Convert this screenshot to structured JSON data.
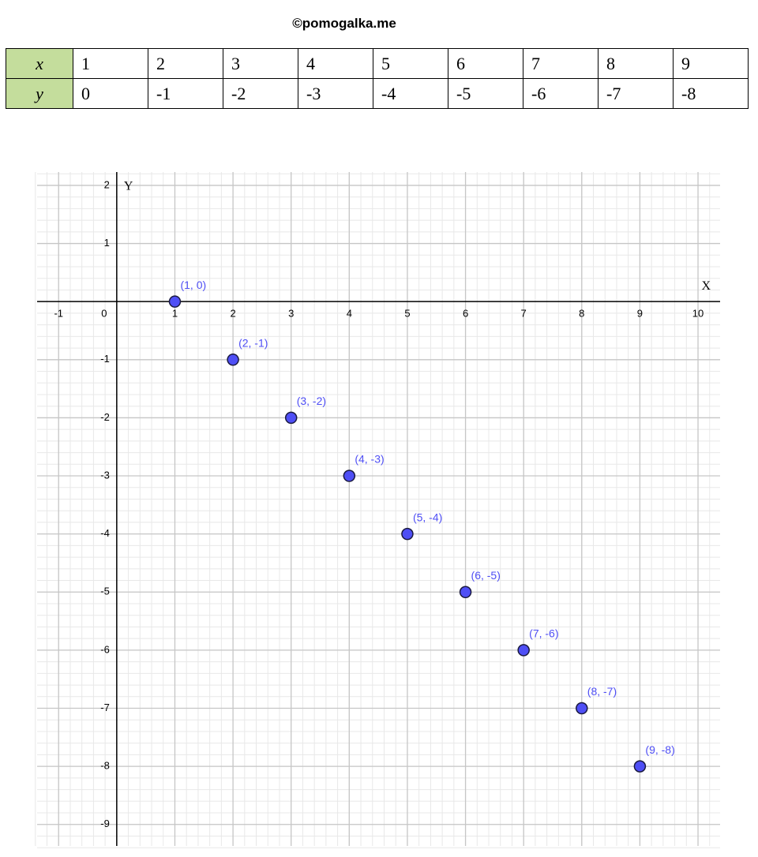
{
  "header": "©pomogalka.me",
  "table": {
    "rows": [
      [
        "x",
        "1",
        "2",
        "3",
        "4",
        "5",
        "6",
        "7",
        "8",
        "9"
      ],
      [
        "y",
        "0",
        "-1",
        "-2",
        "-3",
        "-4",
        "-5",
        "-6",
        "-7",
        "-8"
      ]
    ]
  },
  "chart_data": {
    "type": "scatter",
    "x_label": "X",
    "y_label": "Y",
    "x": [
      1,
      2,
      3,
      4,
      5,
      6,
      7,
      8,
      9
    ],
    "series": [
      {
        "color": "#4f4ff5",
        "values": [
          0,
          -1,
          -2,
          -3,
          -4,
          -5,
          -6,
          -7,
          -8
        ],
        "value_labels": [
          "(1, 0)",
          "(2, -1)",
          "(3, -2)",
          "(4, -3)",
          "(5, -4)",
          "(6, -5)",
          "(7, -6)",
          "(8, -7)",
          "(9, -8)"
        ]
      }
    ],
    "xlim": [
      -1.37,
      10.38
    ],
    "ylim": [
      -9.37,
      2.23
    ],
    "xticks": [
      -1,
      0,
      1,
      2,
      3,
      4,
      5,
      6,
      7,
      8,
      9,
      10
    ],
    "yticks": [
      -9,
      -8,
      -7,
      -6,
      -5,
      -4,
      -3,
      -2,
      -1,
      1,
      2
    ],
    "grid": true
  }
}
